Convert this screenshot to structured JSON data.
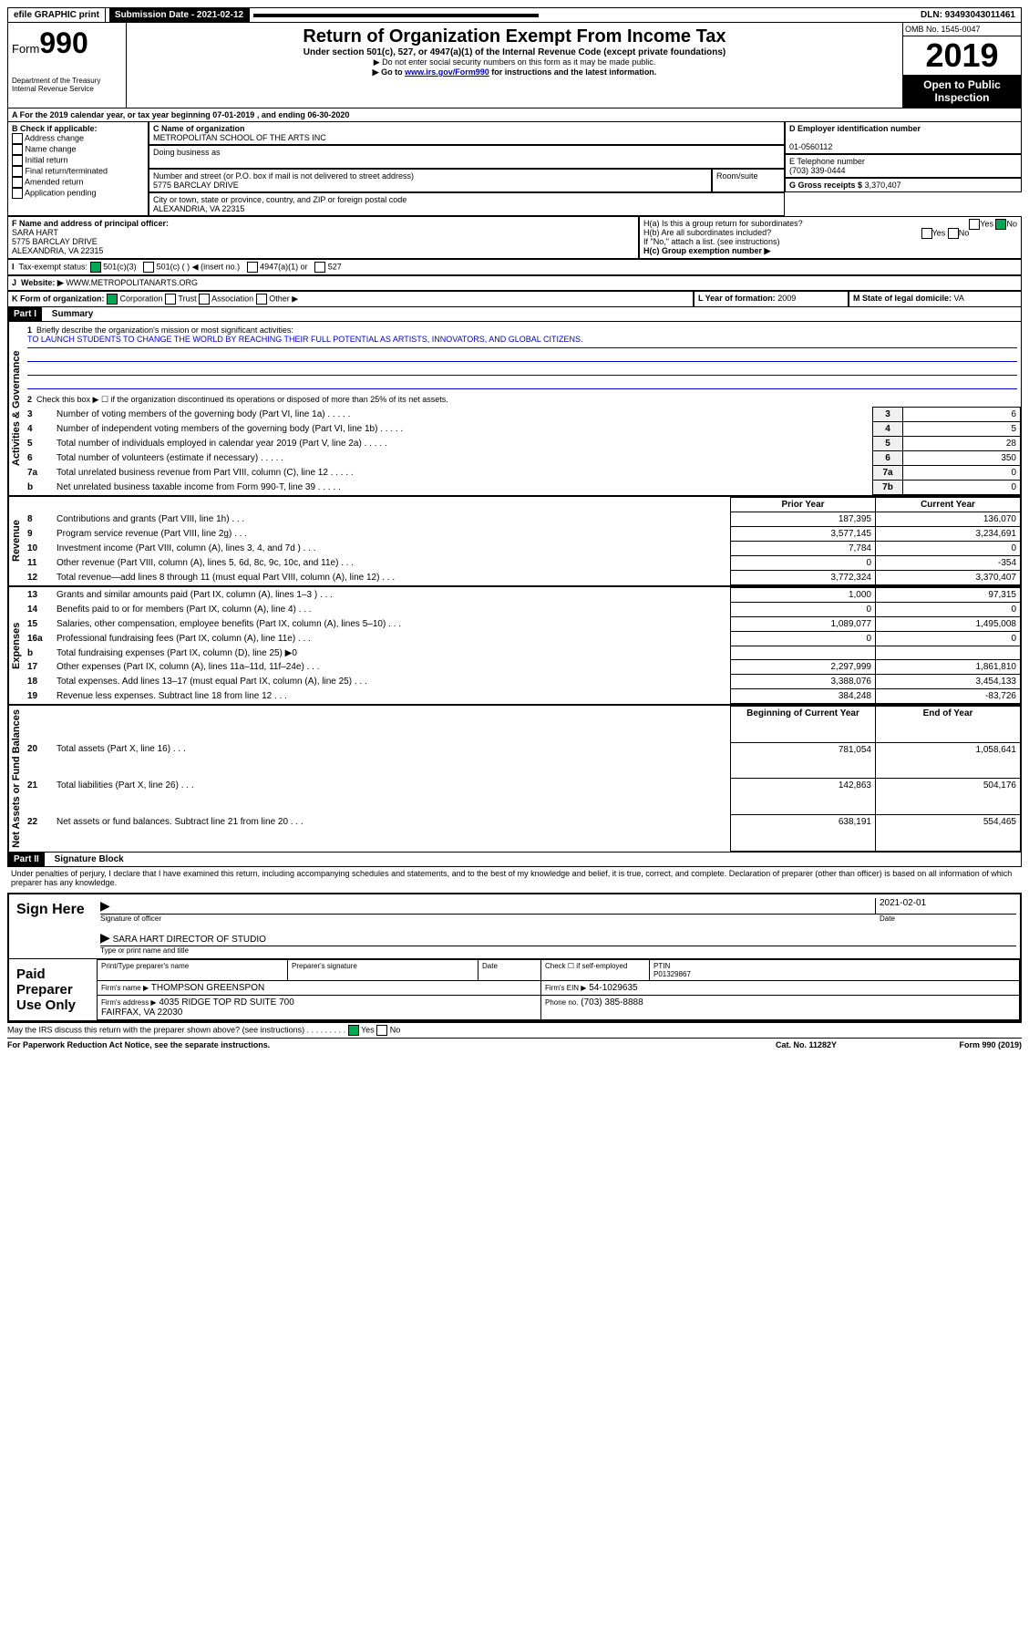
{
  "top": {
    "efile": "efile GRAPHIC print",
    "submission": "Submission Date - 2021-02-12",
    "dln": "DLN: 93493043011461"
  },
  "header": {
    "form_label": "Form",
    "form_num": "990",
    "dept": "Department of the Treasury\nInternal Revenue Service",
    "title": "Return of Organization Exempt From Income Tax",
    "subtitle": "Under section 501(c), 527, or 4947(a)(1) of the Internal Revenue Code (except private foundations)",
    "note1": "▶ Do not enter social security numbers on this form as it may be made public.",
    "note2_pre": "▶ Go to ",
    "note2_link": "www.irs.gov/Form990",
    "note2_post": " for instructions and the latest information.",
    "omb": "OMB No. 1545-0047",
    "year": "2019",
    "open": "Open to Public Inspection"
  },
  "period": {
    "text_a": "For the 2019 calendar year, or tax year beginning ",
    "begin": "07-01-2019",
    "text_b": " , and ending ",
    "end": "06-30-2020"
  },
  "boxB": {
    "label": "B Check if applicable:",
    "items": [
      "Address change",
      "Name change",
      "Initial return",
      "Final return/terminated",
      "Amended return",
      "Application pending"
    ]
  },
  "boxC": {
    "name_label": "C Name of organization",
    "name": "METROPOLITAN SCHOOL OF THE ARTS INC",
    "dba_label": "Doing business as",
    "addr_label": "Number and street (or P.O. box if mail is not delivered to street address)",
    "room_label": "Room/suite",
    "addr": "5775 BARCLAY DRIVE",
    "city_label": "City or town, state or province, country, and ZIP or foreign postal code",
    "city": "ALEXANDRIA, VA  22315"
  },
  "boxD": {
    "label": "D Employer identification number",
    "val": "01-0560112"
  },
  "boxE": {
    "label": "E Telephone number",
    "val": "(703) 339-0444"
  },
  "boxG": {
    "label": "G Gross receipts $",
    "val": "3,370,407"
  },
  "boxF": {
    "label": "F Name and address of principal officer:",
    "name": "SARA HART",
    "addr1": "5775 BARCLAY DRIVE",
    "addr2": "ALEXANDRIA, VA  22315"
  },
  "boxH": {
    "a": "H(a)  Is this a group return for subordinates?",
    "b": "H(b)  Are all subordinates included?",
    "note": "If \"No,\" attach a list. (see instructions)",
    "c": "H(c)  Group exemption number ▶"
  },
  "boxI": {
    "label": "Tax-exempt status:",
    "opts": [
      "501(c)(3)",
      "501(c) (  ) ◀ (insert no.)",
      "4947(a)(1) or",
      "527"
    ]
  },
  "boxJ": {
    "label": "Website: ▶",
    "val": "WWW.METROPOLITANARTS.ORG"
  },
  "boxK": {
    "label": "K Form of organization:",
    "opts": [
      "Corporation",
      "Trust",
      "Association",
      "Other ▶"
    ]
  },
  "boxL": {
    "label": "L Year of formation:",
    "val": "2009"
  },
  "boxM": {
    "label": "M State of legal domicile:",
    "val": "VA"
  },
  "partI": {
    "hdr": "Part I",
    "title": "Summary",
    "l1": "Briefly describe the organization's mission or most significant activities:",
    "mission": "TO LAUNCH STUDENTS TO CHANGE THE WORLD BY REACHING THEIR FULL POTENTIAL AS ARTISTS, INNOVATORS, AND GLOBAL CITIZENS.",
    "l2": "Check this box ▶ ☐  if the organization discontinued its operations or disposed of more than 25% of its net assets.",
    "sections": [
      {
        "label": "Activities & Governance",
        "rows": [
          {
            "n": "3",
            "t": "Number of voting members of the governing body (Part VI, line 1a)",
            "c": "3",
            "v": "6"
          },
          {
            "n": "4",
            "t": "Number of independent voting members of the governing body (Part VI, line 1b)",
            "c": "4",
            "v": "5"
          },
          {
            "n": "5",
            "t": "Total number of individuals employed in calendar year 2019 (Part V, line 2a)",
            "c": "5",
            "v": "28"
          },
          {
            "n": "6",
            "t": "Total number of volunteers (estimate if necessary)",
            "c": "6",
            "v": "350"
          },
          {
            "n": "7a",
            "t": "Total unrelated business revenue from Part VIII, column (C), line 12",
            "c": "7a",
            "v": "0"
          },
          {
            "n": "b",
            "t": "Net unrelated business taxable income from Form 990-T, line 39",
            "c": "7b",
            "v": "0"
          }
        ]
      },
      {
        "label": "Revenue",
        "hdr_prior": "Prior Year",
        "hdr_curr": "Current Year",
        "rows": [
          {
            "n": "8",
            "t": "Contributions and grants (Part VIII, line 1h)",
            "p": "187,395",
            "c": "136,070"
          },
          {
            "n": "9",
            "t": "Program service revenue (Part VIII, line 2g)",
            "p": "3,577,145",
            "c": "3,234,691"
          },
          {
            "n": "10",
            "t": "Investment income (Part VIII, column (A), lines 3, 4, and 7d )",
            "p": "7,784",
            "c": "0"
          },
          {
            "n": "11",
            "t": "Other revenue (Part VIII, column (A), lines 5, 6d, 8c, 9c, 10c, and 11e)",
            "p": "0",
            "c": "-354"
          },
          {
            "n": "12",
            "t": "Total revenue—add lines 8 through 11 (must equal Part VIII, column (A), line 12)",
            "p": "3,772,324",
            "c": "3,370,407"
          }
        ]
      },
      {
        "label": "Expenses",
        "rows": [
          {
            "n": "13",
            "t": "Grants and similar amounts paid (Part IX, column (A), lines 1–3 )",
            "p": "1,000",
            "c": "97,315"
          },
          {
            "n": "14",
            "t": "Benefits paid to or for members (Part IX, column (A), line 4)",
            "p": "0",
            "c": "0"
          },
          {
            "n": "15",
            "t": "Salaries, other compensation, employee benefits (Part IX, column (A), lines 5–10)",
            "p": "1,089,077",
            "c": "1,495,008"
          },
          {
            "n": "16a",
            "t": "Professional fundraising fees (Part IX, column (A), line 11e)",
            "p": "0",
            "c": "0"
          },
          {
            "n": "b",
            "t": "Total fundraising expenses (Part IX, column (D), line 25) ▶0",
            "p": "",
            "c": ""
          },
          {
            "n": "17",
            "t": "Other expenses (Part IX, column (A), lines 11a–11d, 11f–24e)",
            "p": "2,297,999",
            "c": "1,861,810"
          },
          {
            "n": "18",
            "t": "Total expenses. Add lines 13–17 (must equal Part IX, column (A), line 25)",
            "p": "3,388,076",
            "c": "3,454,133"
          },
          {
            "n": "19",
            "t": "Revenue less expenses. Subtract line 18 from line 12",
            "p": "384,248",
            "c": "-83,726"
          }
        ]
      },
      {
        "label": "Net Assets or Fund Balances",
        "hdr_prior": "Beginning of Current Year",
        "hdr_curr": "End of Year",
        "rows": [
          {
            "n": "20",
            "t": "Total assets (Part X, line 16)",
            "p": "781,054",
            "c": "1,058,641"
          },
          {
            "n": "21",
            "t": "Total liabilities (Part X, line 26)",
            "p": "142,863",
            "c": "504,176"
          },
          {
            "n": "22",
            "t": "Net assets or fund balances. Subtract line 21 from line 20",
            "p": "638,191",
            "c": "554,465"
          }
        ]
      }
    ]
  },
  "partII": {
    "hdr": "Part II",
    "title": "Signature Block",
    "decl": "Under penalties of perjury, I declare that I have examined this return, including accompanying schedules and statements, and to the best of my knowledge and belief, it is true, correct, and complete. Declaration of preparer (other than officer) is based on all information of which preparer has any knowledge."
  },
  "sign": {
    "here": "Sign Here",
    "sig_label": "Signature of officer",
    "date": "2021-02-01",
    "date_label": "Date",
    "name": "SARA HART DIRECTOR OF STUDIO",
    "name_label": "Type or print name and title"
  },
  "paid": {
    "label": "Paid Preparer Use Only",
    "h1": "Print/Type preparer's name",
    "h2": "Preparer's signature",
    "h3": "Date",
    "h4": "Check ☐ if self-employed",
    "h5": "PTIN",
    "ptin": "P01329867",
    "firm_label": "Firm's name  ▶",
    "firm": "THOMPSON GREENSPON",
    "ein_label": "Firm's EIN ▶",
    "ein": "54-1029635",
    "addr_label": "Firm's address ▶",
    "addr": "4035 RIDGE TOP RD SUITE 700\nFAIRFAX, VA  22030",
    "phone_label": "Phone no.",
    "phone": "(703) 385-8888"
  },
  "footer": {
    "q": "May the IRS discuss this return with the preparer shown above? (see instructions)",
    "notice": "For Paperwork Reduction Act Notice, see the separate instructions.",
    "cat": "Cat. No. 11282Y",
    "form": "Form 990 (2019)"
  }
}
